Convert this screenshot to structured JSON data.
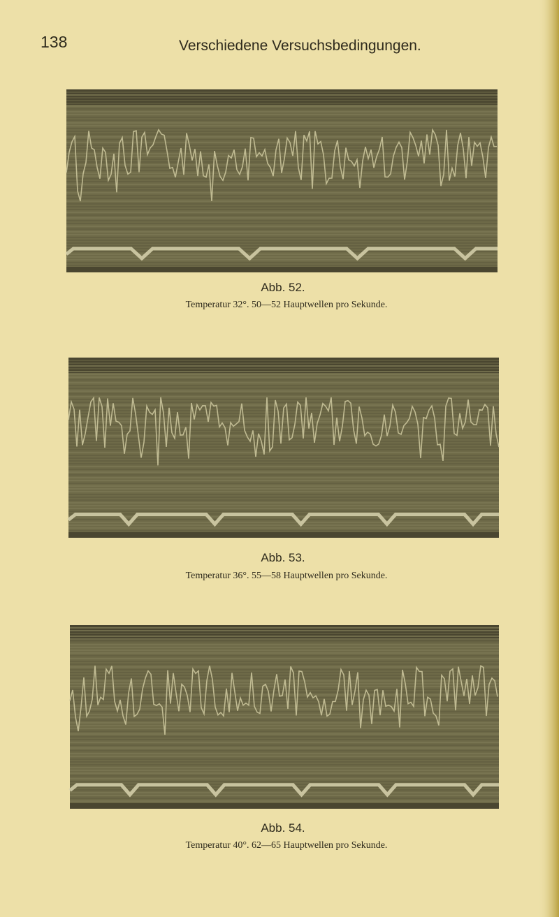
{
  "header": {
    "page_number": "138",
    "running_title": "Verschiedene Versuchsbedingungen."
  },
  "figures": [
    {
      "label": "Abb. 52.",
      "caption": "Temperatur 32°. 50—52 Hauptwellen pro Sekunde."
    },
    {
      "label": "Abb. 53.",
      "caption": "Temperatur 36°. 55—58 Hauptwellen pro Sekunde."
    },
    {
      "label": "Abb. 54.",
      "caption": "Temperatur 40°. 62—65 Hauptwellen pro Sekunde."
    }
  ]
}
